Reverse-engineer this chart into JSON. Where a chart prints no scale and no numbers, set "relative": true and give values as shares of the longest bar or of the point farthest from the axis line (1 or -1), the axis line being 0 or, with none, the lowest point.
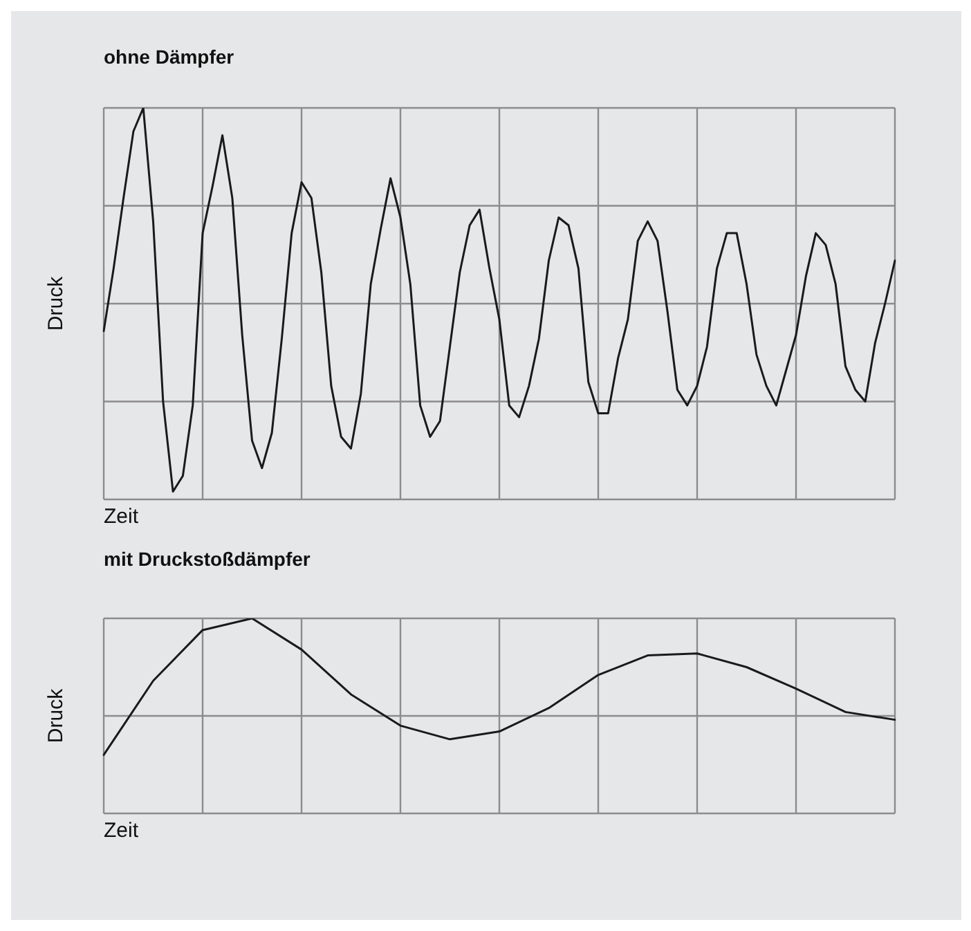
{
  "chart_data": [
    {
      "type": "line",
      "title": "ohne Dämpfer",
      "xlabel": "Zeit",
      "ylabel": "Druck",
      "relative": true,
      "grid": true,
      "tick_labels": false,
      "categories": [
        null,
        null,
        null,
        null,
        null,
        null,
        null,
        null,
        null,
        null,
        null,
        null,
        null,
        null,
        null,
        null,
        null,
        null,
        null,
        null,
        null,
        null,
        null,
        null,
        null,
        null,
        null,
        null,
        null,
        null,
        null,
        null,
        null,
        null,
        null,
        null,
        null,
        null,
        null,
        null,
        null,
        null,
        null,
        null,
        null,
        null,
        null,
        null,
        null,
        null,
        null,
        null,
        null,
        null,
        null,
        null,
        null,
        null,
        null,
        null,
        null,
        null,
        null,
        null,
        null,
        null,
        null,
        null,
        null,
        null,
        null,
        null,
        null,
        null,
        null,
        null,
        null,
        null,
        null,
        null,
        null
      ],
      "series": [
        {
          "color": "#1a1a1a",
          "values": [
            0.43,
            0.59,
            0.77,
            0.94,
            1,
            0.71,
            0.25,
            0.02,
            0.06,
            0.24,
            0.68,
            0.8,
            0.93,
            0.77,
            0.42,
            0.15,
            0.08,
            0.17,
            0.41,
            0.68,
            0.81,
            0.77,
            0.58,
            0.29,
            0.16,
            0.13,
            0.27,
            0.55,
            0.69,
            0.82,
            0.72,
            0.55,
            0.24,
            0.16,
            0.2,
            0.39,
            0.58,
            0.7,
            0.74,
            0.59,
            0.46,
            0.24,
            0.21,
            0.29,
            0.41,
            0.61,
            0.72,
            0.7,
            0.59,
            0.3,
            0.22,
            0.22,
            0.36,
            0.46,
            0.66,
            0.71,
            0.66,
            0.48,
            0.28,
            0.24,
            0.29,
            0.39,
            0.59,
            0.68,
            0.68,
            0.55,
            0.37,
            0.29,
            0.24,
            0.33,
            0.42,
            0.57,
            0.68,
            0.65,
            0.55,
            0.34,
            0.28,
            0.25,
            0.4,
            0.5,
            0.61
          ]
        }
      ]
    },
    {
      "type": "line",
      "title": "mit Druckstoßdämpfer",
      "xlabel": "Zeit",
      "ylabel": "Druck",
      "relative": true,
      "grid": true,
      "tick_labels": false,
      "categories": [
        null,
        null,
        null,
        null,
        null,
        null,
        null,
        null,
        null,
        null,
        null,
        null,
        null,
        null,
        null,
        null,
        null
      ],
      "series": [
        {
          "color": "#1a1a1a",
          "values": [
            0.3,
            0.68,
            0.94,
            1,
            0.84,
            0.61,
            0.45,
            0.38,
            0.42,
            0.54,
            0.71,
            0.81,
            0.82,
            0.75,
            0.64,
            0.52,
            0.48
          ]
        }
      ]
    }
  ]
}
